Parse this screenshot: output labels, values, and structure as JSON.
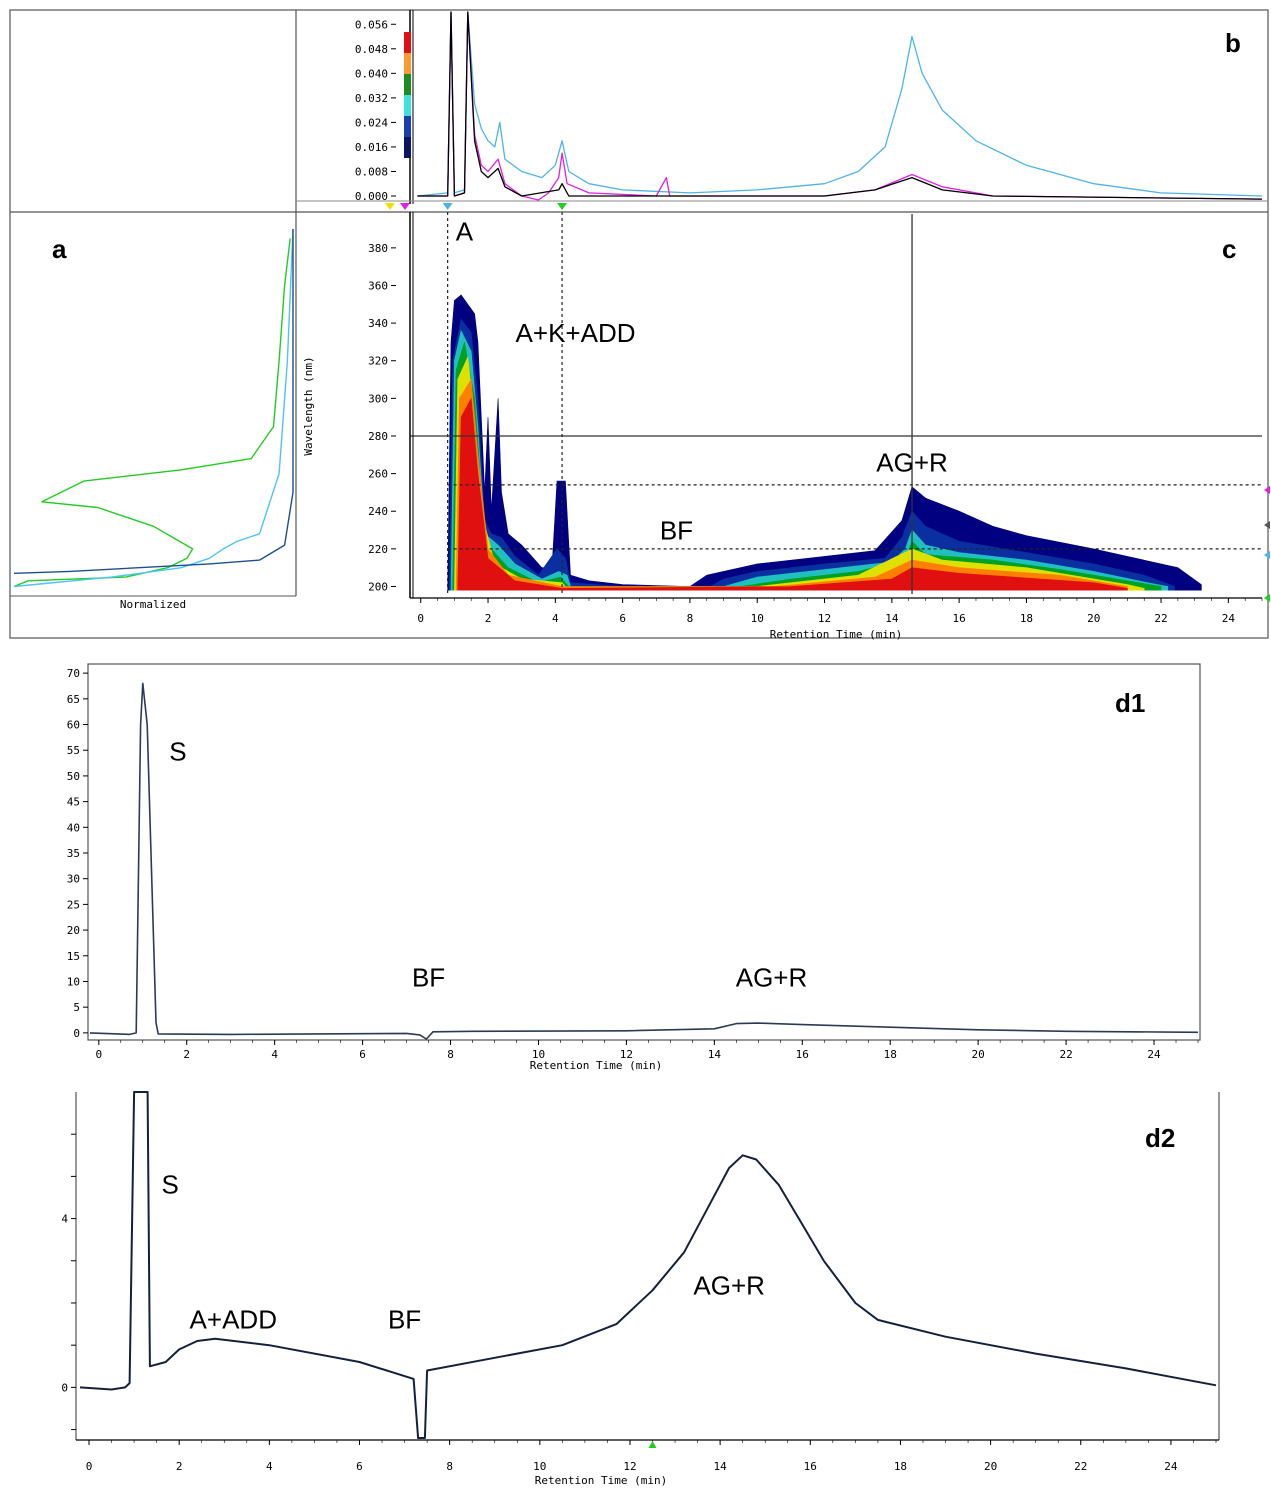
{
  "chart_data": [
    {
      "panel": "a",
      "type": "line",
      "xlabel": "Normalized",
      "series_colors": [
        "#1f4e8c",
        "#4fc3f7",
        "#22cc22"
      ],
      "note_y_axis": "shared wavelength axis with panel c",
      "series": [
        {
          "color": "#22cc22",
          "points": [
            [
              0.0,
              200
            ],
            [
              0.05,
              203
            ],
            [
              0.4,
              205
            ],
            [
              0.55,
              210
            ],
            [
              0.62,
              215
            ],
            [
              0.64,
              220
            ],
            [
              0.5,
              232
            ],
            [
              0.3,
              242
            ],
            [
              0.1,
              245
            ],
            [
              0.25,
              256
            ],
            [
              0.6,
              262
            ],
            [
              0.85,
              268
            ],
            [
              0.93,
              285
            ],
            [
              0.95,
              320
            ],
            [
              0.97,
              360
            ],
            [
              0.99,
              385
            ]
          ]
        },
        {
          "color": "#4fc3f7",
          "points": [
            [
              0.0,
              200
            ],
            [
              0.35,
              205
            ],
            [
              0.6,
              210
            ],
            [
              0.7,
              215
            ],
            [
              0.75,
              220
            ],
            [
              0.8,
              224
            ],
            [
              0.88,
              228
            ],
            [
              0.95,
              260
            ],
            [
              0.98,
              320
            ],
            [
              1.0,
              390
            ]
          ]
        },
        {
          "color": "#1f4e8c",
          "points": [
            [
              0.0,
              207
            ],
            [
              0.2,
              208
            ],
            [
              0.7,
              212
            ],
            [
              0.88,
              214
            ],
            [
              0.97,
              222
            ],
            [
              1.0,
              250
            ],
            [
              1.0,
              390
            ]
          ]
        }
      ]
    },
    {
      "panel": "b",
      "type": "line",
      "ylim": [
        0.0,
        0.06
      ],
      "xlim": [
        -0.2,
        25
      ],
      "yticks": [
        "0.000",
        "0.008",
        "0.016",
        "0.024",
        "0.032",
        "0.040",
        "0.048",
        "0.056"
      ],
      "series": [
        {
          "color": "#4fb3e8",
          "points": [
            [
              -0.1,
              0.0
            ],
            [
              0.8,
              0.001
            ],
            [
              0.9,
              0.06
            ],
            [
              1.0,
              0.001
            ],
            [
              1.3,
              0.002
            ],
            [
              1.4,
              0.06
            ],
            [
              1.6,
              0.03
            ],
            [
              1.8,
              0.022
            ],
            [
              2.0,
              0.018
            ],
            [
              2.2,
              0.016
            ],
            [
              2.35,
              0.024
            ],
            [
              2.5,
              0.012
            ],
            [
              3.0,
              0.008
            ],
            [
              3.6,
              0.006
            ],
            [
              4.0,
              0.01
            ],
            [
              4.2,
              0.018
            ],
            [
              4.4,
              0.008
            ],
            [
              5.0,
              0.004
            ],
            [
              6.0,
              0.002
            ],
            [
              8.0,
              0.001
            ],
            [
              10.0,
              0.002
            ],
            [
              12.0,
              0.004
            ],
            [
              13.0,
              0.008
            ],
            [
              13.8,
              0.016
            ],
            [
              14.3,
              0.035
            ],
            [
              14.6,
              0.052
            ],
            [
              14.9,
              0.04
            ],
            [
              15.5,
              0.028
            ],
            [
              16.5,
              0.018
            ],
            [
              18.0,
              0.01
            ],
            [
              20.0,
              0.004
            ],
            [
              22.0,
              0.001
            ],
            [
              25.0,
              0.0
            ]
          ]
        },
        {
          "color": "#e020e0",
          "points": [
            [
              -0.1,
              0.0
            ],
            [
              0.8,
              0.0
            ],
            [
              0.9,
              0.06
            ],
            [
              1.0,
              0.0
            ],
            [
              1.3,
              0.001
            ],
            [
              1.4,
              0.06
            ],
            [
              1.6,
              0.02
            ],
            [
              1.8,
              0.01
            ],
            [
              2.0,
              0.008
            ],
            [
              2.3,
              0.012
            ],
            [
              2.5,
              0.004
            ],
            [
              3.0,
              0.0
            ],
            [
              3.5,
              -0.002
            ],
            [
              3.8,
              0.001
            ],
            [
              4.1,
              0.006
            ],
            [
              4.2,
              0.014
            ],
            [
              4.35,
              0.004
            ],
            [
              5.0,
              0.001
            ],
            [
              7.0,
              0.0
            ],
            [
              7.3,
              0.006
            ],
            [
              7.4,
              0.0
            ],
            [
              12.0,
              0.0
            ],
            [
              13.5,
              0.002
            ],
            [
              14.6,
              0.007
            ],
            [
              15.5,
              0.003
            ],
            [
              17.0,
              0.0
            ],
            [
              25.0,
              -0.001
            ]
          ]
        },
        {
          "color": "#000000",
          "points": [
            [
              -0.1,
              0.0
            ],
            [
              0.8,
              0.0
            ],
            [
              0.9,
              0.06
            ],
            [
              1.0,
              0.0
            ],
            [
              1.3,
              0.001
            ],
            [
              1.4,
              0.06
            ],
            [
              1.6,
              0.018
            ],
            [
              1.8,
              0.008
            ],
            [
              2.0,
              0.006
            ],
            [
              2.3,
              0.009
            ],
            [
              2.5,
              0.003
            ],
            [
              3.0,
              0.0
            ],
            [
              4.1,
              0.002
            ],
            [
              4.2,
              0.004
            ],
            [
              4.4,
              0.0
            ],
            [
              12.0,
              0.0
            ],
            [
              13.5,
              0.002
            ],
            [
              14.6,
              0.006
            ],
            [
              15.5,
              0.002
            ],
            [
              17.0,
              0.0
            ],
            [
              25.0,
              -0.001
            ]
          ]
        }
      ]
    },
    {
      "panel": "c",
      "type": "heatmap",
      "xlabel": "Retention Time (min)",
      "ylabel": "Wavelength (nm)",
      "xlim": [
        -0.2,
        25
      ],
      "ylim": [
        196,
        398
      ],
      "xticks": [
        "0",
        "2",
        "4",
        "6",
        "8",
        "10",
        "12",
        "14",
        "16",
        "18",
        "20",
        "22",
        "24"
      ],
      "yticks": [
        "200",
        "220",
        "240",
        "260",
        "280",
        "300",
        "320",
        "340",
        "360",
        "380"
      ],
      "crosshair": {
        "x": 14.6,
        "y": 280
      },
      "dashed_vertical": [
        0.8,
        4.2
      ],
      "dashed_horizontal": [
        254,
        220
      ],
      "annotations": [
        {
          "text": "A",
          "x": 1.3,
          "y": 384
        },
        {
          "text": "A+K+ADD",
          "x": 4.6,
          "y": 330
        },
        {
          "text": "AG+R",
          "x": 14.6,
          "y": 261
        },
        {
          "text": "BF",
          "x": 7.6,
          "y": 225
        }
      ],
      "contour_colors": [
        "#000080",
        "#0a2fa0",
        "#20c0c0",
        "#00a020",
        "#e0e000",
        "#ff8000",
        "#e01010"
      ]
    },
    {
      "panel": "d1",
      "type": "line",
      "xlabel": "Retention Time (min)",
      "xlim": [
        -0.2,
        25
      ],
      "ylim": [
        -1,
        71
      ],
      "xticks": [
        "0",
        "2",
        "4",
        "6",
        "8",
        "10",
        "12",
        "14",
        "16",
        "18",
        "20",
        "22",
        "24"
      ],
      "yticks": [
        "0",
        "5",
        "10",
        "15",
        "20",
        "25",
        "30",
        "35",
        "40",
        "45",
        "50",
        "55",
        "60",
        "65",
        "70"
      ],
      "annotations": [
        {
          "text": "S",
          "x": 1.8,
          "y": 53
        },
        {
          "text": "BF",
          "x": 7.5,
          "y": 9
        },
        {
          "text": "AG+R",
          "x": 15.3,
          "y": 9
        }
      ],
      "series": [
        {
          "color": "#2b3a55",
          "points": [
            [
              -0.2,
              0.0
            ],
            [
              0.7,
              -0.3
            ],
            [
              0.85,
              0.0
            ],
            [
              0.95,
              60
            ],
            [
              1.0,
              68
            ],
            [
              1.1,
              60
            ],
            [
              1.3,
              2
            ],
            [
              1.35,
              -0.2
            ],
            [
              3.0,
              -0.3
            ],
            [
              7.0,
              -0.1
            ],
            [
              7.3,
              -0.4
            ],
            [
              7.45,
              -1.2
            ],
            [
              7.6,
              0.2
            ],
            [
              8.5,
              0.3
            ],
            [
              12.0,
              0.4
            ],
            [
              14.0,
              0.8
            ],
            [
              14.5,
              1.8
            ],
            [
              15.0,
              1.9
            ],
            [
              16.0,
              1.6
            ],
            [
              18.0,
              1.1
            ],
            [
              20.0,
              0.6
            ],
            [
              22.0,
              0.3
            ],
            [
              25.0,
              0.1
            ]
          ]
        }
      ]
    },
    {
      "panel": "d2",
      "type": "line",
      "xlabel": "Retention Time (min)",
      "xlim": [
        -0.2,
        25
      ],
      "ylim": [
        -1.2,
        7.0
      ],
      "xticks": [
        "0",
        "2",
        "4",
        "6",
        "8",
        "10",
        "12",
        "14",
        "16",
        "18",
        "20",
        "22",
        "24"
      ],
      "yticks": [
        "0",
        "4"
      ],
      "annotations": [
        {
          "text": "S",
          "x": 1.8,
          "y": 4.6
        },
        {
          "text": "A+ADD",
          "x": 3.2,
          "y": 1.4
        },
        {
          "text": "BF",
          "x": 7.0,
          "y": 1.4
        },
        {
          "text": "AG+R",
          "x": 14.2,
          "y": 2.2
        }
      ],
      "series": [
        {
          "color": "#14213d",
          "points": [
            [
              -0.2,
              0.0
            ],
            [
              0.5,
              -0.05
            ],
            [
              0.8,
              0.0
            ],
            [
              0.9,
              0.1
            ],
            [
              1.0,
              7.0
            ],
            [
              1.3,
              7.0
            ],
            [
              1.35,
              0.5
            ],
            [
              1.7,
              0.6
            ],
            [
              2.0,
              0.9
            ],
            [
              2.4,
              1.1
            ],
            [
              2.8,
              1.15
            ],
            [
              4.0,
              1.0
            ],
            [
              6.0,
              0.6
            ],
            [
              7.2,
              0.2
            ],
            [
              7.3,
              -1.2
            ],
            [
              7.45,
              -1.2
            ],
            [
              7.5,
              0.4
            ],
            [
              9.0,
              0.7
            ],
            [
              10.5,
              1.0
            ],
            [
              11.7,
              1.5
            ],
            [
              12.5,
              2.3
            ],
            [
              13.2,
              3.2
            ],
            [
              13.8,
              4.4
            ],
            [
              14.2,
              5.2
            ],
            [
              14.5,
              5.5
            ],
            [
              14.8,
              5.4
            ],
            [
              15.3,
              4.8
            ],
            [
              15.8,
              3.9
            ],
            [
              16.3,
              3.0
            ],
            [
              17.0,
              2.0
            ],
            [
              17.5,
              1.6
            ],
            [
              19.0,
              1.2
            ],
            [
              21.0,
              0.8
            ],
            [
              23.0,
              0.45
            ],
            [
              25.0,
              0.05
            ]
          ]
        }
      ]
    }
  ],
  "panel_labels": {
    "a": "a",
    "b": "b",
    "c": "c",
    "d1": "d1",
    "d2": "d2"
  },
  "axis_labels": {
    "c_x": "Retention Time (min)",
    "c_y": "Wavelength (nm)",
    "a_x": "Normalized",
    "d1_x": "Retention Time (min)",
    "d2_x": "Retention Time (min)"
  }
}
